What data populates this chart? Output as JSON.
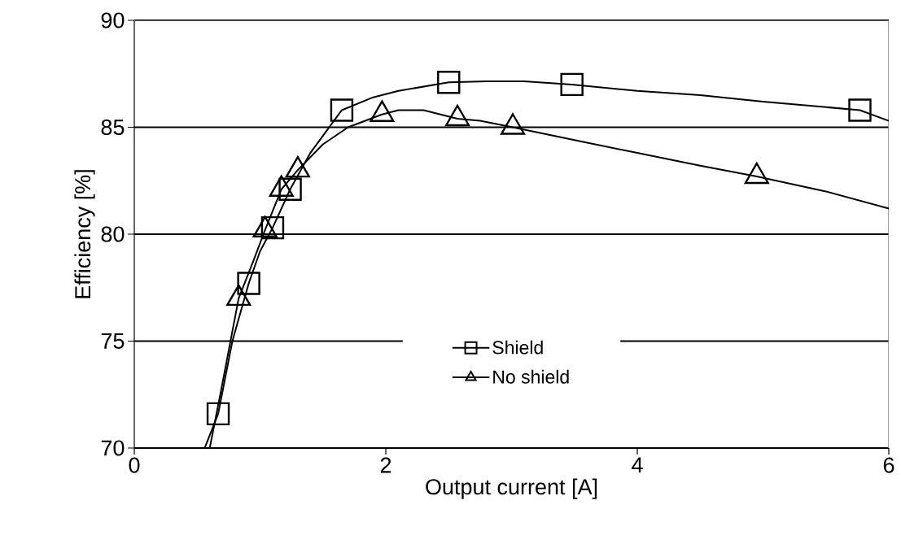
{
  "chart_data": {
    "type": "line",
    "xlabel": "Output current [A]",
    "ylabel": "Efficiency [%]",
    "xlim": [
      0,
      6
    ],
    "ylim": [
      70,
      90
    ],
    "xticks": [
      0,
      2,
      4,
      6
    ],
    "yticks": [
      70,
      75,
      80,
      85,
      90
    ],
    "grid": "y",
    "legend": "bottom",
    "series": [
      {
        "type": "line",
        "color": "#000000",
        "marker": "none",
        "x": [
          0.56,
          0.667,
          0.78,
          0.91,
          1.0,
          1.1,
          1.24,
          1.4,
          1.65,
          1.9,
          2.1,
          2.5,
          2.8,
          3.1,
          3.48,
          4.0,
          4.5,
          5.0,
          5.77,
          6.0
        ],
        "values": [
          70,
          71.6,
          75,
          77.7,
          79.2,
          80.3,
          82.1,
          83.8,
          85.8,
          86.4,
          86.7,
          87.1,
          87.15,
          87.15,
          87.0,
          86.7,
          86.5,
          86.2,
          85.8,
          85.3
        ]
      },
      {
        "type": "scatter",
        "name": "Shield",
        "color": "#000000",
        "marker": "square",
        "x": [
          0.667,
          0.91,
          1.1,
          1.24,
          1.65,
          2.5,
          3.48,
          5.77
        ],
        "values": [
          71.6,
          77.7,
          80.3,
          82.1,
          85.8,
          87.1,
          87.0,
          85.8
        ]
      },
      {
        "type": "line",
        "color": "#000000",
        "marker": "none",
        "x": [
          0.6,
          0.7,
          0.83,
          0.95,
          1.04,
          1.17,
          1.3,
          1.5,
          1.7,
          1.97,
          2.1,
          2.3,
          2.57,
          2.75,
          3.01,
          3.5,
          4.0,
          4.5,
          4.95,
          5.5,
          6.0
        ],
        "values": [
          70,
          73,
          77.0,
          78.8,
          80.2,
          82.1,
          83.0,
          84.2,
          85.0,
          85.6,
          85.8,
          85.8,
          85.4,
          85.3,
          85.0,
          84.4,
          83.8,
          83.2,
          82.7,
          82.0,
          81.2
        ]
      },
      {
        "type": "scatter",
        "name": "No shield",
        "color": "#000000",
        "marker": "triangle",
        "x": [
          0.83,
          1.04,
          1.17,
          1.3,
          1.97,
          2.57,
          3.01,
          4.95
        ],
        "values": [
          77.0,
          80.2,
          82.1,
          83.0,
          85.6,
          85.4,
          85.0,
          82.7
        ]
      }
    ]
  }
}
